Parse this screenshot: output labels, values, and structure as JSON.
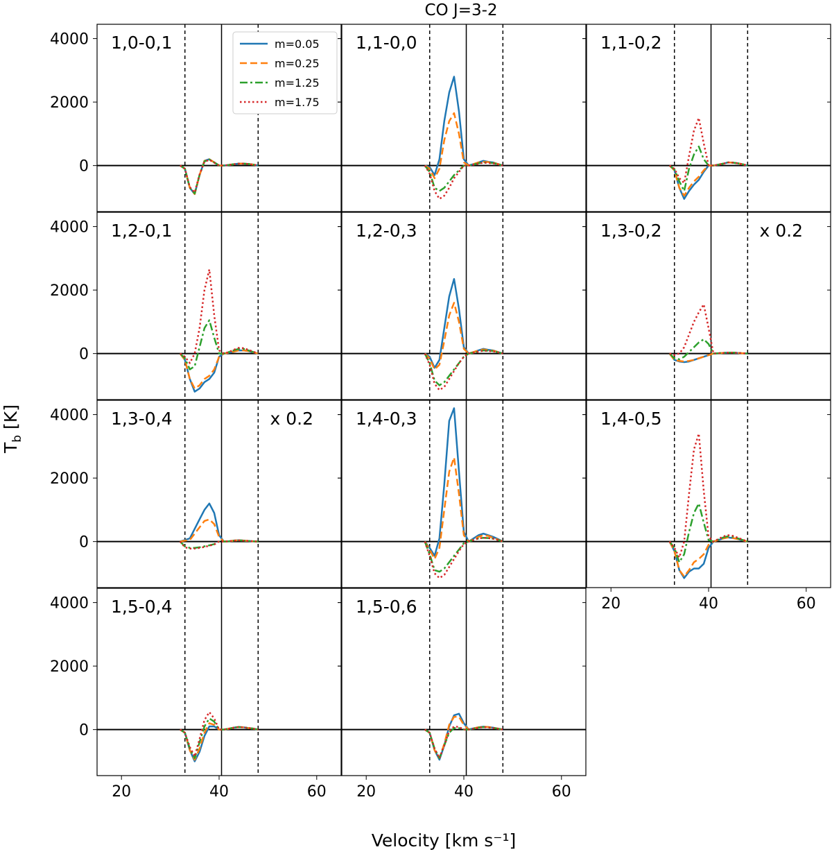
{
  "chart_data": {
    "type": "line",
    "title": "CO J=3-2",
    "xlabel": "Velocity [km s⁻¹]",
    "ylabel": "T_b [K]",
    "xlim": [
      15,
      65
    ],
    "ylim": [
      -1450,
      4450
    ],
    "xticks": [
      20,
      40,
      60
    ],
    "yticks": [
      0,
      2000,
      4000
    ],
    "grid": false,
    "legend_position": "top-right of first panel",
    "reference_lines": {
      "dashed": [
        33,
        48
      ],
      "solid": 40.5
    },
    "series": [
      {
        "name": "m=0.05",
        "color": "#1f77b4",
        "dash": "solid"
      },
      {
        "name": "m=0.25",
        "color": "#ff7f0e",
        "dash": "dashed"
      },
      {
        "name": "m=1.25",
        "color": "#2ca02c",
        "dash": "dashdot"
      },
      {
        "name": "m=1.75",
        "color": "#d62728",
        "dash": "dotted"
      }
    ],
    "x": [
      32,
      33,
      34,
      35,
      36,
      37,
      38,
      39,
      40,
      41,
      42,
      43,
      44,
      45,
      46,
      47,
      48
    ],
    "panels": [
      {
        "label": "1,0-0,1",
        "scale": "",
        "values": [
          [
            0,
            -100,
            -700,
            -900,
            -300,
            150,
            200,
            100,
            0,
            0,
            20,
            40,
            60,
            60,
            50,
            30,
            0
          ],
          [
            0,
            -100,
            -700,
            -900,
            -300,
            150,
            200,
            100,
            0,
            0,
            20,
            40,
            60,
            60,
            50,
            30,
            0
          ],
          [
            0,
            -100,
            -700,
            -880,
            -300,
            130,
            190,
            100,
            0,
            0,
            20,
            40,
            60,
            60,
            50,
            30,
            0
          ],
          [
            0,
            -100,
            -680,
            -850,
            -280,
            120,
            180,
            90,
            0,
            0,
            20,
            40,
            60,
            60,
            50,
            30,
            0
          ]
        ]
      },
      {
        "label": "1,1-0,0",
        "scale": "",
        "values": [
          [
            0,
            -50,
            -300,
            200,
            1400,
            2300,
            2800,
            1700,
            200,
            0,
            50,
            100,
            150,
            120,
            100,
            50,
            0
          ],
          [
            0,
            -100,
            -400,
            -100,
            800,
            1400,
            1650,
            1000,
            100,
            0,
            50,
            100,
            120,
            110,
            90,
            50,
            0
          ],
          [
            0,
            -200,
            -700,
            -800,
            -700,
            -500,
            -300,
            -150,
            0,
            0,
            30,
            70,
            100,
            90,
            80,
            40,
            0
          ],
          [
            0,
            -250,
            -800,
            -1050,
            -950,
            -700,
            -400,
            -200,
            0,
            0,
            30,
            60,
            90,
            80,
            70,
            40,
            0
          ]
        ]
      },
      {
        "label": "1,1-0,2",
        "scale": "",
        "values": [
          [
            0,
            -150,
            -700,
            -1050,
            -800,
            -600,
            -450,
            -200,
            0,
            0,
            30,
            60,
            100,
            90,
            70,
            40,
            0
          ],
          [
            0,
            -150,
            -700,
            -950,
            -700,
            -500,
            -350,
            -150,
            0,
            0,
            30,
            60,
            100,
            90,
            70,
            40,
            0
          ],
          [
            0,
            -120,
            -500,
            -800,
            -100,
            350,
            600,
            200,
            0,
            0,
            30,
            60,
            100,
            90,
            70,
            40,
            0
          ],
          [
            0,
            -100,
            -400,
            -550,
            300,
            1100,
            1500,
            700,
            0,
            0,
            30,
            60,
            100,
            90,
            70,
            40,
            0
          ]
        ]
      },
      {
        "label": "1,2-0,1",
        "scale": "",
        "values": [
          [
            0,
            -200,
            -800,
            -1200,
            -1100,
            -900,
            -800,
            -600,
            -100,
            0,
            30,
            60,
            100,
            100,
            80,
            40,
            0
          ],
          [
            0,
            -200,
            -800,
            -1100,
            -1000,
            -800,
            -700,
            -500,
            -100,
            0,
            30,
            60,
            100,
            100,
            80,
            40,
            0
          ],
          [
            0,
            -150,
            -500,
            -400,
            200,
            800,
            1050,
            500,
            0,
            0,
            50,
            100,
            150,
            150,
            100,
            50,
            0
          ],
          [
            0,
            -100,
            -300,
            0,
            800,
            2000,
            2650,
            1200,
            100,
            0,
            50,
            120,
            180,
            170,
            120,
            60,
            0
          ]
        ]
      },
      {
        "label": "1,2-0,3",
        "scale": "",
        "values": [
          [
            0,
            -100,
            -450,
            -200,
            800,
            1800,
            2350,
            1400,
            200,
            0,
            50,
            100,
            150,
            120,
            100,
            50,
            0
          ],
          [
            0,
            -150,
            -500,
            -350,
            400,
            1200,
            1600,
            1000,
            150,
            0,
            50,
            100,
            130,
            110,
            90,
            50,
            0
          ],
          [
            0,
            -300,
            -850,
            -1000,
            -900,
            -700,
            -500,
            -300,
            -100,
            0,
            30,
            60,
            100,
            90,
            80,
            40,
            0
          ],
          [
            0,
            -350,
            -950,
            -1150,
            -1050,
            -800,
            -550,
            -300,
            -100,
            0,
            30,
            60,
            90,
            80,
            70,
            40,
            0
          ]
        ]
      },
      {
        "label": "1,3-0,2",
        "scale": "x 0.2",
        "values": [
          [
            0,
            -200,
            -250,
            -270,
            -250,
            -200,
            -150,
            -100,
            -50,
            0,
            10,
            20,
            30,
            30,
            20,
            10,
            0
          ],
          [
            0,
            -200,
            -230,
            -250,
            -230,
            -200,
            -150,
            -100,
            -50,
            0,
            10,
            20,
            30,
            30,
            20,
            10,
            0
          ],
          [
            0,
            -150,
            -180,
            -100,
            50,
            200,
            350,
            450,
            300,
            0,
            10,
            20,
            30,
            30,
            20,
            10,
            0
          ],
          [
            0,
            -50,
            0,
            200,
            600,
            1000,
            1300,
            1550,
            800,
            0,
            10,
            20,
            30,
            30,
            20,
            10,
            0
          ]
        ]
      },
      {
        "label": "1,3-0,4",
        "scale": "x 0.2",
        "values": [
          [
            0,
            50,
            100,
            400,
            700,
            1000,
            1200,
            900,
            200,
            0,
            10,
            30,
            40,
            30,
            20,
            10,
            0
          ],
          [
            0,
            30,
            50,
            250,
            450,
            650,
            700,
            550,
            150,
            0,
            10,
            30,
            40,
            30,
            20,
            10,
            0
          ],
          [
            0,
            -150,
            -200,
            -200,
            -180,
            -150,
            -120,
            -80,
            0,
            0,
            10,
            30,
            40,
            30,
            20,
            10,
            0
          ],
          [
            0,
            -180,
            -220,
            -220,
            -200,
            -170,
            -130,
            -90,
            0,
            0,
            10,
            30,
            40,
            30,
            20,
            10,
            0
          ]
        ]
      },
      {
        "label": "1,4-0,3",
        "scale": "",
        "values": [
          [
            0,
            -200,
            -450,
            100,
            1800,
            3800,
            4200,
            2200,
            300,
            0,
            100,
            200,
            250,
            200,
            150,
            80,
            0
          ],
          [
            0,
            -250,
            -550,
            -200,
            1000,
            2200,
            2650,
            1500,
            200,
            0,
            80,
            150,
            200,
            180,
            120,
            60,
            0
          ],
          [
            0,
            -400,
            -900,
            -950,
            -850,
            -650,
            -450,
            -250,
            -50,
            0,
            50,
            100,
            120,
            110,
            90,
            50,
            0
          ],
          [
            0,
            -450,
            -1000,
            -1150,
            -1050,
            -800,
            -550,
            -300,
            -80,
            0,
            50,
            100,
            120,
            110,
            90,
            50,
            0
          ]
        ]
      },
      {
        "label": "1,4-0,5",
        "scale": "",
        "values": [
          [
            0,
            -300,
            -900,
            -1150,
            -950,
            -850,
            -850,
            -700,
            -200,
            0,
            50,
            100,
            130,
            110,
            80,
            40,
            0
          ],
          [
            0,
            -300,
            -900,
            -1100,
            -900,
            -650,
            -550,
            -400,
            -100,
            0,
            50,
            100,
            130,
            110,
            80,
            40,
            0
          ],
          [
            0,
            -200,
            -650,
            -400,
            300,
            900,
            1200,
            600,
            50,
            0,
            60,
            130,
            170,
            150,
            100,
            50,
            0
          ],
          [
            0,
            -200,
            -500,
            0,
            1500,
            2900,
            3400,
            1600,
            150,
            0,
            80,
            160,
            200,
            180,
            120,
            60,
            0
          ]
        ]
      },
      {
        "label": "1,5-0,4",
        "scale": "",
        "values": [
          [
            0,
            -100,
            -650,
            -1000,
            -700,
            -200,
            100,
            100,
            0,
            0,
            30,
            60,
            80,
            70,
            50,
            30,
            0
          ],
          [
            0,
            -100,
            -650,
            -950,
            -600,
            -100,
            200,
            150,
            0,
            0,
            30,
            60,
            80,
            70,
            50,
            30,
            0
          ],
          [
            0,
            -100,
            -600,
            -900,
            -400,
            100,
            350,
            250,
            0,
            0,
            30,
            60,
            80,
            70,
            50,
            30,
            0
          ],
          [
            0,
            -100,
            -550,
            -850,
            -300,
            300,
            550,
            350,
            0,
            0,
            30,
            60,
            80,
            70,
            50,
            30,
            0
          ]
        ]
      },
      {
        "label": "1,5-0,6",
        "scale": "",
        "values": [
          [
            0,
            -100,
            -650,
            -950,
            -500,
            100,
            450,
            500,
            200,
            0,
            40,
            70,
            90,
            80,
            60,
            30,
            0
          ],
          [
            0,
            -100,
            -650,
            -900,
            -450,
            150,
            400,
            400,
            150,
            0,
            40,
            70,
            90,
            80,
            60,
            30,
            0
          ],
          [
            0,
            -100,
            -600,
            -900,
            -500,
            -100,
            50,
            50,
            0,
            0,
            30,
            60,
            80,
            70,
            50,
            30,
            0
          ],
          [
            0,
            -100,
            -600,
            -900,
            -500,
            -50,
            100,
            80,
            0,
            0,
            30,
            60,
            80,
            70,
            50,
            30,
            0
          ]
        ]
      }
    ]
  }
}
